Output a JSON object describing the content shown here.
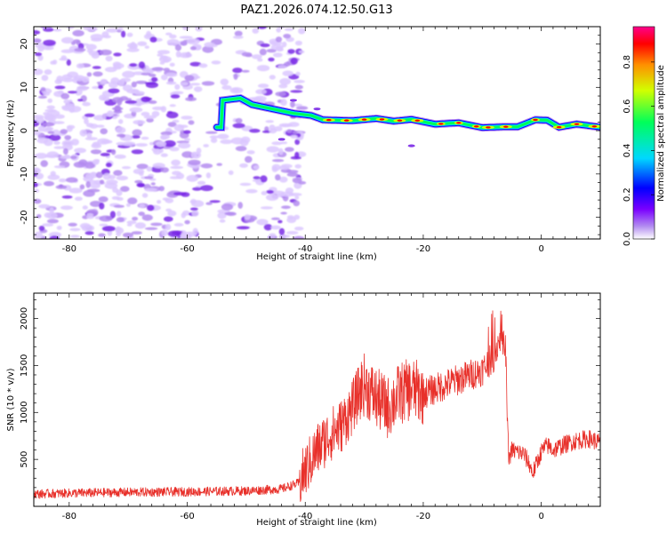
{
  "title": "PAZ1.2026.074.12.50.G13",
  "colors": {
    "line": "#e8302a",
    "cloud_light": "#dcc8ff",
    "cloud_mid": "#b48cf0",
    "cloud_dark": "#7a28e6"
  },
  "chart_data": [
    {
      "type": "heatmap",
      "title": "PAZ1.2026.074.12.50.G13",
      "xlabel": "Height of straight line (km)",
      "ylabel": "Frequency (Hz)",
      "xlim": [
        -86,
        10
      ],
      "ylim": [
        -25,
        24
      ],
      "xticks": [
        -80,
        -60,
        -40,
        -20,
        0
      ],
      "yticks": [
        -20,
        -10,
        0,
        10,
        20
      ],
      "colorbar": {
        "label": "Normalized spectral amplitude",
        "range": [
          0,
          0.96
        ],
        "ticks": [
          "0.0",
          "0.2",
          "0.4",
          "0.6",
          "0.8"
        ],
        "tick_values": [
          0.0,
          0.2,
          0.4,
          0.6,
          0.8
        ],
        "colormap": [
          "#ffffff",
          "#b28cf0",
          "#7a00ff",
          "#0000ff",
          "#00d8ff",
          "#00ff5a",
          "#d2ff00",
          "#ff9000",
          "#ff0000",
          "#ff008c"
        ]
      },
      "description_series": {
        "trace_freq_hz": [
          [
            -54,
            7
          ],
          [
            -51,
            7.5
          ],
          [
            -49,
            6
          ],
          [
            -42,
            4
          ],
          [
            -39,
            3.5
          ],
          [
            -37,
            2.5
          ],
          [
            -32,
            2.3
          ],
          [
            -28,
            2.8
          ],
          [
            -25,
            2.2
          ],
          [
            -22,
            2.6
          ],
          [
            -18,
            1.5
          ],
          [
            -14,
            1.8
          ],
          [
            -10,
            0.7
          ],
          [
            -6,
            0.9
          ],
          [
            -4,
            0.9
          ],
          [
            -1,
            2.5
          ],
          [
            1,
            2.4
          ],
          [
            3,
            0.8
          ],
          [
            6,
            1.5
          ],
          [
            10,
            0.8
          ]
        ]
      }
    },
    {
      "type": "line",
      "xlabel": "Height of straight line (km)",
      "ylabel": "SNR (10 * v/v)",
      "xlim": [
        -86,
        10
      ],
      "ylim": [
        0,
        2270
      ],
      "xticks": [
        -80,
        -60,
        -40,
        -20,
        0
      ],
      "yticks": [
        500,
        1000,
        1500,
        2000
      ],
      "series": [
        {
          "name": "SNR",
          "x": [
            -86,
            -80,
            -70,
            -60,
            -50,
            -44,
            -41,
            -40,
            -38,
            -36,
            -34,
            -32,
            -31,
            -30,
            -28,
            -26,
            -24,
            -22,
            -20,
            -18,
            -16,
            -14,
            -12,
            -10,
            -8,
            -7,
            -6,
            -5.8,
            -5.5,
            -5,
            -4,
            -3,
            -2,
            -1.5,
            -1,
            0,
            1,
            2,
            4,
            6,
            8,
            10
          ],
          "y": [
            130,
            140,
            150,
            155,
            165,
            185,
            250,
            380,
            600,
            750,
            850,
            1050,
            1200,
            1300,
            1150,
            1050,
            1200,
            1250,
            1200,
            1250,
            1300,
            1350,
            1400,
            1450,
            1600,
            1800,
            1650,
            1000,
            500,
            600,
            580,
            560,
            450,
            350,
            420,
            580,
            650,
            600,
            660,
            700,
            720,
            680
          ]
        }
      ]
    }
  ]
}
